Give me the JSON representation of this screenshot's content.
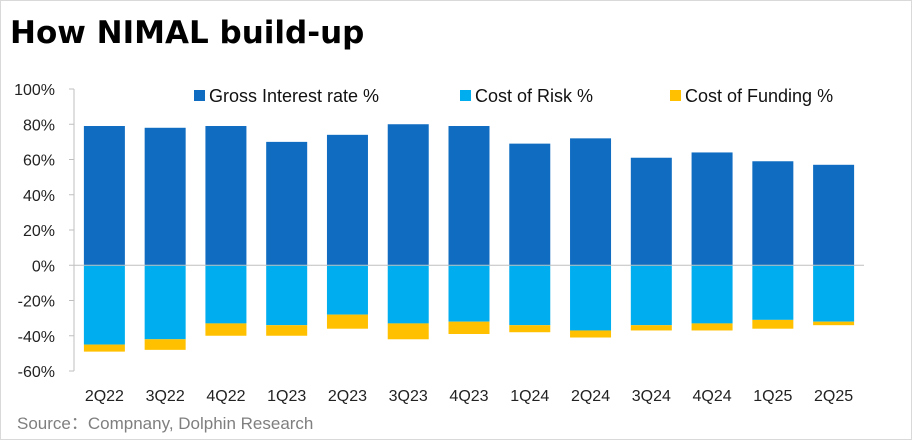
{
  "chart_data": {
    "type": "bar",
    "stacked": true,
    "title": "How NIMAL build-up",
    "source": "Source：Compnany, Dolphin Research",
    "xlabel": "",
    "ylabel": "",
    "ylim": [
      -60,
      100
    ],
    "yticks": [
      "100%",
      "80%",
      "60%",
      "40%",
      "20%",
      "0%",
      "-20%",
      "-40%",
      "-60%"
    ],
    "ytick_values": [
      100,
      80,
      60,
      40,
      20,
      0,
      -20,
      -40,
      -60
    ],
    "grid": false,
    "legend_position": "top",
    "categories": [
      "2Q22",
      "3Q22",
      "4Q22",
      "1Q23",
      "2Q23",
      "3Q23",
      "4Q23",
      "1Q24",
      "2Q24",
      "3Q24",
      "4Q24",
      "1Q25",
      "2Q25"
    ],
    "series": [
      {
        "name": "Gross Interest rate %",
        "color": "#0f6cc1",
        "values": [
          79,
          78,
          79,
          70,
          74,
          80,
          79,
          69,
          72,
          61,
          64,
          59,
          57
        ]
      },
      {
        "name": "Cost of Risk %",
        "color": "#00aeef",
        "values": [
          -45,
          -42,
          -33,
          -34,
          -28,
          -33,
          -32,
          -34,
          -37,
          -34,
          -33,
          -31,
          -32
        ]
      },
      {
        "name": "Cost of Funding %",
        "color": "#ffc000",
        "values": [
          -4,
          -6,
          -7,
          -6,
          -8,
          -9,
          -7,
          -4,
          -4,
          -3,
          -4,
          -5,
          -2
        ]
      }
    ]
  }
}
